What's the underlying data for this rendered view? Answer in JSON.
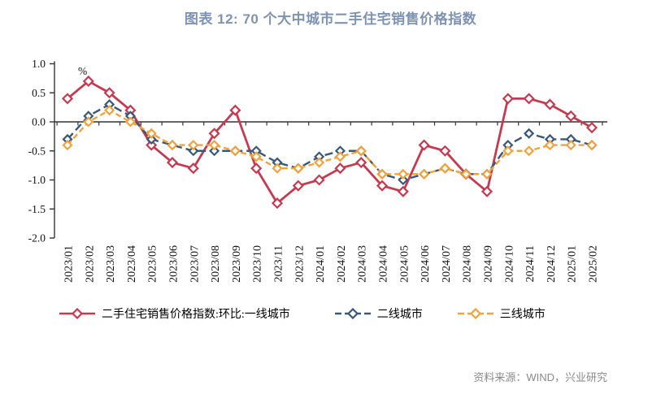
{
  "title": "图表 12: 70 个大中城市二手住宅销售价格指数",
  "source_note": "资料来源：WIND，兴业研究",
  "colors": {
    "title": "#7E93B2",
    "axis": "#333333",
    "first_tier": "#C33B50",
    "second_tier": "#3A5878",
    "third_tier": "#F0A23C",
    "source_text": "#8A8A8A"
  },
  "chart_data": {
    "type": "line",
    "title": "图表 12: 70 个大中城市二手住宅销售价格指数",
    "xlabel": "",
    "ylabel": "%",
    "ylim": [
      -2.0,
      1.0
    ],
    "yticks": [
      1.0,
      0.5,
      0.0,
      -0.5,
      -1.0,
      -1.5,
      -2.0
    ],
    "grid": false,
    "legend_position": "bottom",
    "categories": [
      "2023/01",
      "2023/02",
      "2023/03",
      "2023/04",
      "2023/05",
      "2023/06",
      "2023/07",
      "2023/08",
      "2023/09",
      "2023/10",
      "2023/11",
      "2023/12",
      "2024/01",
      "2024/02",
      "2024/03",
      "2024/04",
      "2024/05",
      "2024/06",
      "2024/07",
      "2024/08",
      "2024/09",
      "2024/10",
      "2024/11",
      "2024/12",
      "2025/01",
      "2025/02"
    ],
    "series": [
      {
        "name": "二手住宅销售价格指数:环比:一线城市",
        "color": "#C33B50",
        "line_style": "solid",
        "marker": "diamond",
        "values": [
          0.4,
          0.7,
          0.5,
          0.2,
          -0.4,
          -0.7,
          -0.8,
          -0.2,
          0.2,
          -0.8,
          -1.4,
          -1.1,
          -1.0,
          -0.8,
          -0.7,
          -1.1,
          -1.2,
          -0.4,
          -0.5,
          -0.9,
          -1.2,
          0.4,
          0.4,
          0.3,
          0.1,
          -0.1
        ]
      },
      {
        "name": "二线城市",
        "color": "#3A5878",
        "line_style": "dashed",
        "marker": "diamond",
        "values": [
          -0.3,
          0.1,
          0.3,
          0.1,
          -0.3,
          -0.4,
          -0.5,
          -0.5,
          -0.5,
          -0.5,
          -0.7,
          -0.8,
          -0.6,
          -0.5,
          -0.5,
          -0.9,
          -1.0,
          -0.9,
          -0.8,
          -0.9,
          -0.9,
          -0.4,
          -0.2,
          -0.3,
          -0.3,
          -0.4
        ]
      },
      {
        "name": "三线城市",
        "color": "#F0A23C",
        "line_style": "dashed",
        "marker": "diamond",
        "values": [
          -0.4,
          0.0,
          0.2,
          0.0,
          -0.2,
          -0.4,
          -0.4,
          -0.4,
          -0.5,
          -0.6,
          -0.8,
          -0.8,
          -0.7,
          -0.6,
          -0.5,
          -0.9,
          -0.9,
          -0.9,
          -0.8,
          -0.9,
          -0.9,
          -0.5,
          -0.5,
          -0.4,
          -0.4,
          -0.4
        ]
      }
    ]
  }
}
